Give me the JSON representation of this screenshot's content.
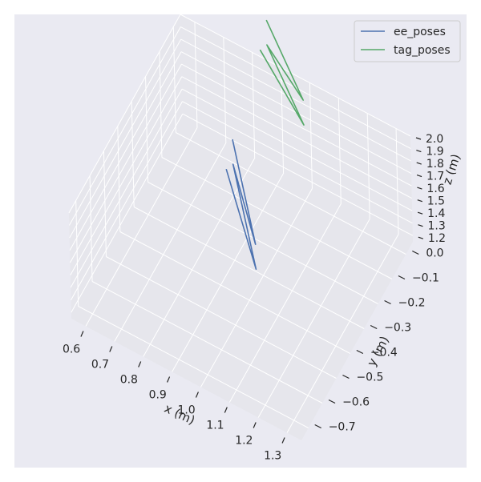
{
  "chart_data": {
    "type": "line",
    "projection": "3d",
    "title": "",
    "xlabel": "x (m)",
    "ylabel": "y (m)",
    "zlabel": "z (m)",
    "xlim": [
      0.55,
      1.35
    ],
    "ylim": [
      -0.75,
      0.05
    ],
    "zlim": [
      1.15,
      2.0
    ],
    "x_ticks": [
      "0.6",
      "0.7",
      "0.8",
      "0.9",
      "1.0",
      "1.1",
      "1.2",
      "1.3"
    ],
    "y_ticks": [
      "0.0",
      "−0.1",
      "−0.2",
      "−0.3",
      "−0.4",
      "−0.5",
      "−0.6",
      "−0.7"
    ],
    "z_ticks": [
      "1.2",
      "1.3",
      "1.4",
      "1.5",
      "1.6",
      "1.7",
      "1.8",
      "1.9",
      "2.0"
    ],
    "grid": true,
    "legend_position": "top-right",
    "series": [
      {
        "name": "ee_poses",
        "color": "#4c72b0",
        "points": [
          [
            0.8,
            -0.1,
            1.6
          ],
          [
            1.0,
            -0.35,
            1.5
          ],
          [
            0.8,
            -0.1,
            1.4
          ],
          [
            1.0,
            -0.35,
            1.3
          ],
          [
            0.75,
            -0.05,
            1.2
          ]
        ]
      },
      {
        "name": "tag_poses",
        "color": "#55a868",
        "points": [
          [
            0.75,
            0.25,
            1.8
          ],
          [
            0.95,
            0.1,
            1.7
          ],
          [
            0.75,
            0.25,
            1.6
          ],
          [
            0.95,
            0.1,
            1.5
          ],
          [
            0.7,
            0.3,
            1.4
          ]
        ]
      }
    ]
  },
  "colors": {
    "figure_bg": "#eaeaf2",
    "pane_bg": "#e6e6ec",
    "grid": "#ffffff",
    "text": "#262626"
  }
}
